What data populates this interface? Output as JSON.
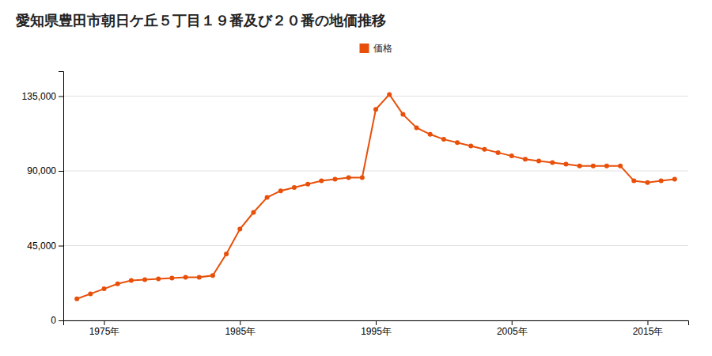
{
  "chart_data": {
    "type": "line",
    "title": "愛知県豊田市朝日ケ丘５丁目１９番及び２０番の地価推移",
    "x": [
      1973,
      1974,
      1975,
      1976,
      1977,
      1978,
      1979,
      1980,
      1981,
      1982,
      1983,
      1984,
      1985,
      1986,
      1987,
      1988,
      1989,
      1990,
      1991,
      1992,
      1993,
      1994,
      1995,
      1996,
      1997,
      1998,
      1999,
      2000,
      2001,
      2002,
      2003,
      2004,
      2005,
      2006,
      2007,
      2008,
      2009,
      2010,
      2011,
      2012,
      2013,
      2014,
      2015,
      2016,
      2017
    ],
    "series": [
      {
        "name": "価格",
        "color": "#E8500A",
        "marker": "circle",
        "values": [
          13000,
          16000,
          19000,
          22000,
          24000,
          24500,
          25000,
          25500,
          26000,
          26000,
          27000,
          40000,
          55000,
          65000,
          74000,
          78000,
          80000,
          82000,
          84000,
          85000,
          86000,
          86000,
          127000,
          136000,
          124000,
          116000,
          112000,
          109000,
          107000,
          105000,
          103000,
          101000,
          99000,
          97000,
          96000,
          95000,
          94000,
          93000,
          93000,
          93000,
          93000,
          84000,
          83000,
          84000,
          85000
        ]
      }
    ],
    "xlim": [
      1972,
      2018
    ],
    "xticks": [
      {
        "value": 1975,
        "label": "1975年"
      },
      {
        "value": 1985,
        "label": "1985年"
      },
      {
        "value": 1995,
        "label": "1995年"
      },
      {
        "value": 2005,
        "label": "2005年"
      },
      {
        "value": 2015,
        "label": "2015年"
      }
    ],
    "ylim": [
      0,
      150000
    ],
    "yticks": [
      0,
      {
        "value": 45000,
        "label": "45,000"
      },
      {
        "value": 90000,
        "label": "90,000"
      },
      {
        "value": 135000,
        "label": "135,000"
      }
    ],
    "grid": "y",
    "legend": "top"
  }
}
